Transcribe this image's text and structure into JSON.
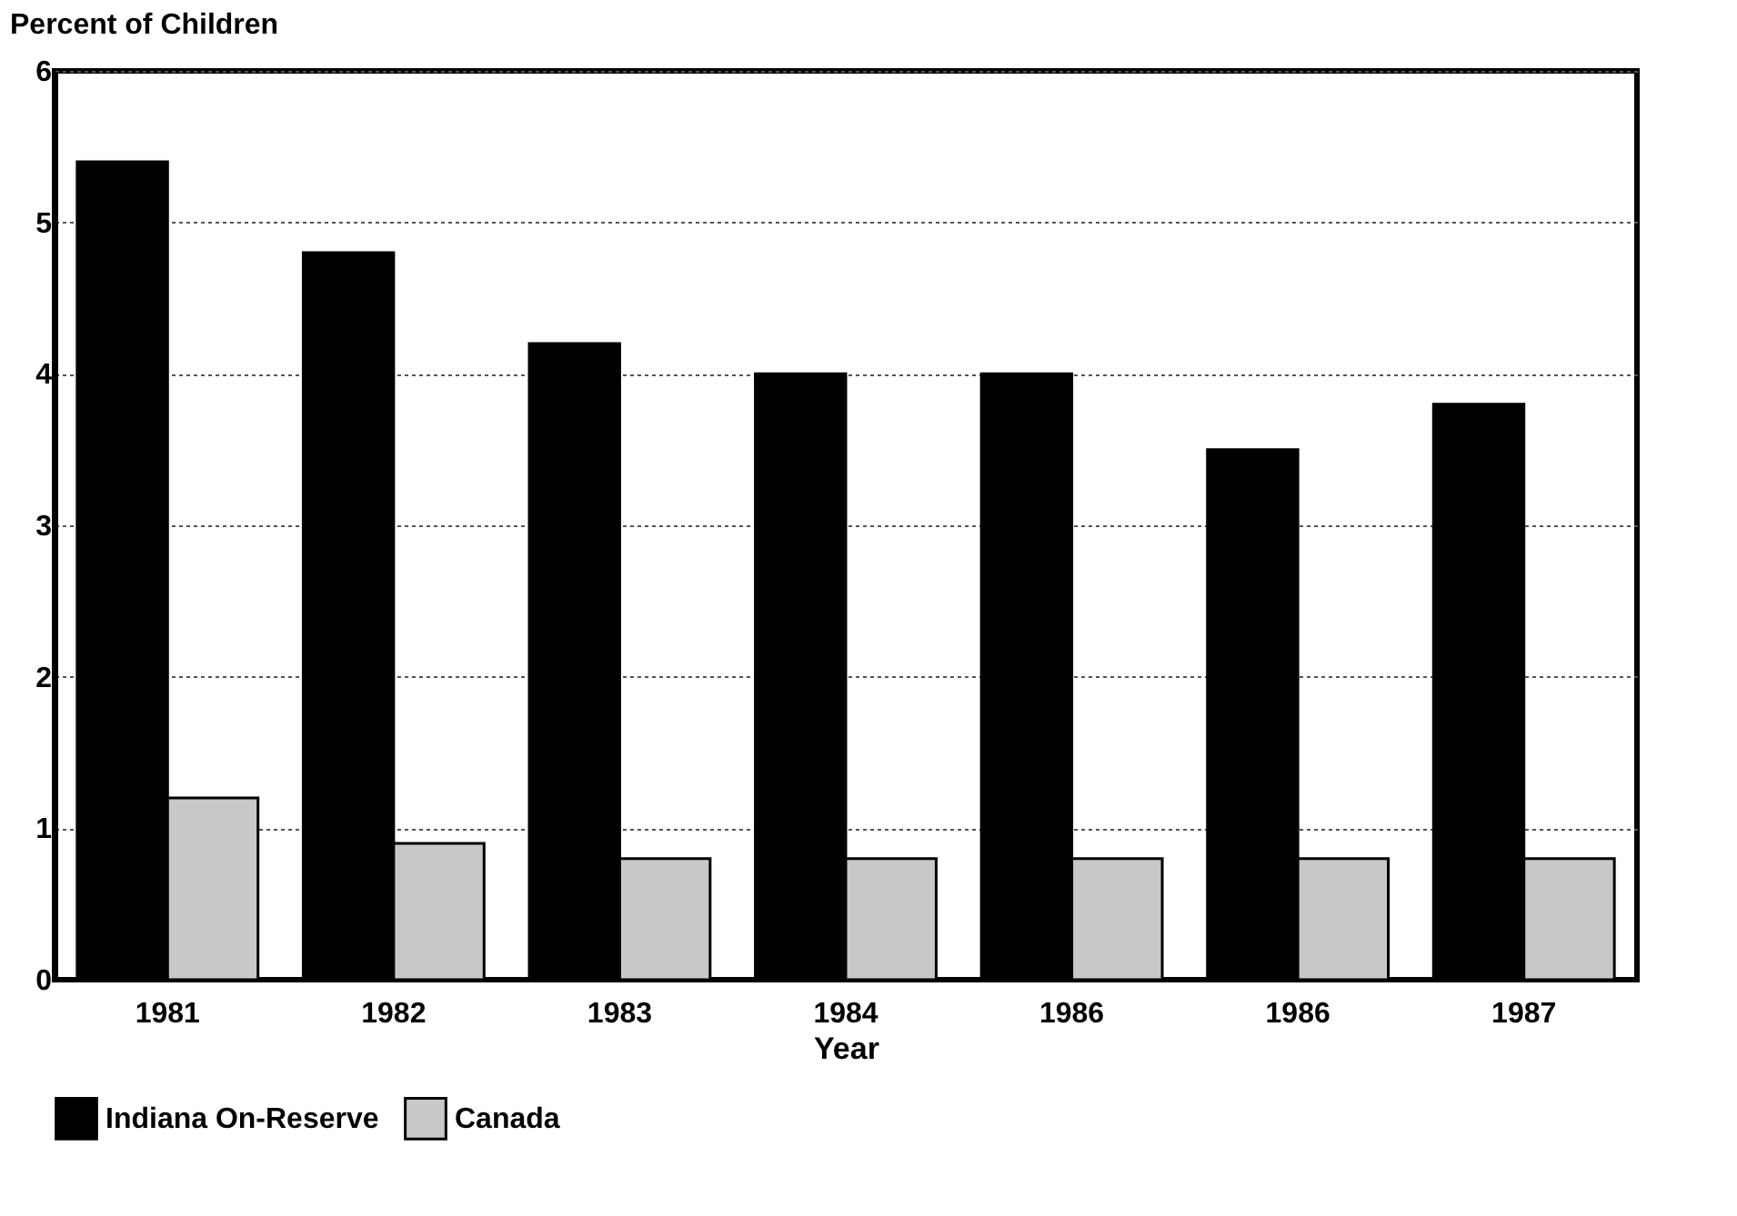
{
  "chart_data": {
    "type": "bar",
    "ylabel": "Percent of Children",
    "xlabel": "Year",
    "categories": [
      "1981",
      "1982",
      "1983",
      "1984",
      "1986",
      "1986",
      "1987"
    ],
    "series": [
      {
        "name": "Indiana On-Reserve",
        "color": "#000000",
        "values": [
          5.4,
          4.8,
          4.2,
          4.0,
          4.0,
          3.5,
          3.8
        ]
      },
      {
        "name": "Canada",
        "color": "#c8c8c8",
        "values": [
          1.2,
          0.9,
          0.8,
          0.8,
          0.8,
          0.8,
          0.8
        ]
      }
    ],
    "ylim": [
      0,
      6
    ],
    "yticks": [
      0,
      1,
      2,
      3,
      4,
      5,
      6
    ],
    "grid": "y",
    "legend": "bottom"
  }
}
